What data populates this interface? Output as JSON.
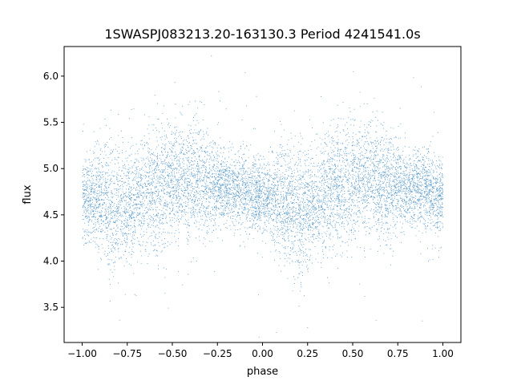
{
  "chart_data": {
    "type": "scatter",
    "title": "1SWASPJ083213.20-163130.3 Period 4241541.0s",
    "xlabel": "phase",
    "ylabel": "flux",
    "xlim": [
      -1.1,
      1.1
    ],
    "ylim": [
      3.12,
      6.32
    ],
    "xticks": [
      -1.0,
      -0.75,
      -0.5,
      -0.25,
      0.0,
      0.25,
      0.5,
      0.75,
      1.0
    ],
    "xtick_labels": [
      "−1.00",
      "−0.75",
      "−0.50",
      "−0.25",
      "0.00",
      "0.25",
      "0.50",
      "0.75",
      "1.00"
    ],
    "yticks": [
      3.5,
      4.0,
      4.5,
      5.0,
      5.5,
      6.0
    ],
    "ytick_labels": [
      "3.5",
      "4.0",
      "4.5",
      "5.0",
      "5.5",
      "6.0"
    ],
    "grid": false,
    "legend": "none",
    "marker_color": "#1f77b4",
    "series": [
      {
        "profile_phase": [
          -1.0,
          -0.9,
          -0.8,
          -0.7,
          -0.6,
          -0.5,
          -0.4,
          -0.3,
          -0.2,
          -0.1,
          0.0
        ],
        "profile_mean_flux": [
          4.7,
          4.68,
          4.55,
          4.68,
          4.78,
          4.85,
          4.9,
          4.82,
          4.78,
          4.78,
          4.7
        ],
        "profile_spread": [
          0.18,
          0.3,
          0.35,
          0.28,
          0.35,
          0.3,
          0.3,
          0.28,
          0.18,
          0.22,
          0.2
        ],
        "phase_range": [
          -1.0,
          1.0
        ],
        "approx_points": 9000
      }
    ]
  }
}
